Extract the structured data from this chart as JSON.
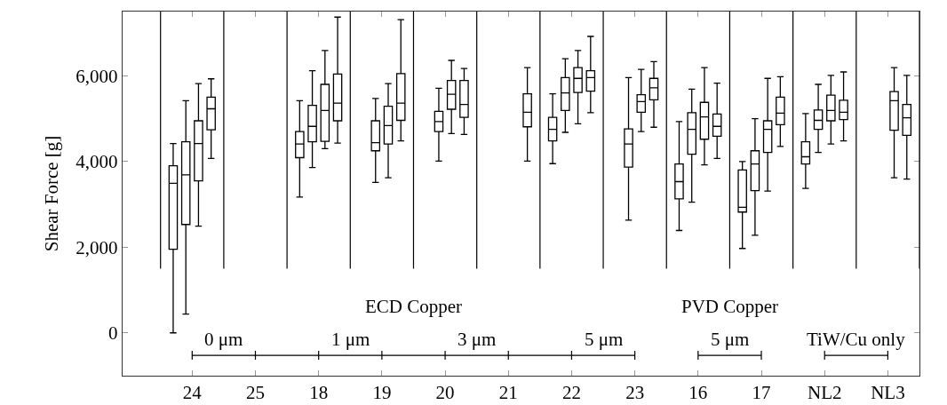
{
  "chart_data": {
    "type": "box",
    "ylabel": "Shear Force [g]",
    "categories": [
      "24",
      "25",
      "18",
      "19",
      "20",
      "21",
      "22",
      "23",
      "16",
      "17",
      "NL2",
      "NL3"
    ],
    "ylim": [
      -1000,
      7500
    ],
    "yticks": [
      0,
      {
        "value": 2000,
        "label": "2,000"
      },
      {
        "value": 4000,
        "label": "4,000"
      },
      {
        "value": 6000,
        "label": "6,000"
      }
    ],
    "grid": false,
    "series": [
      {
        "color": "#000000",
        "boxes": [
          {
            "low": 0,
            "q1": 1950,
            "median": 3490,
            "q3": 3900,
            "high": 4420
          },
          null,
          {
            "low": 3170,
            "q1": 4090,
            "median": 4410,
            "q3": 4700,
            "high": 5420
          },
          null,
          null,
          null,
          {
            "low": 3950,
            "q1": 4480,
            "median": 4750,
            "q3": 5030,
            "high": 5580
          },
          null,
          {
            "low": 2390,
            "q1": 3130,
            "median": 3530,
            "q3": 3940,
            "high": 4930
          },
          {
            "low": 1970,
            "q1": 2820,
            "median": 2930,
            "q3": 3800,
            "high": 4000
          },
          {
            "low": 3370,
            "q1": 3940,
            "median": 4110,
            "q3": 4460,
            "high": 5120
          },
          null
        ]
      },
      {
        "color": "#000000",
        "boxes": [
          {
            "low": 440,
            "q1": 2530,
            "median": 3690,
            "q3": 4460,
            "high": 5420
          },
          null,
          {
            "low": 3860,
            "q1": 4460,
            "median": 4820,
            "q3": 5310,
            "high": 6120
          },
          {
            "low": 3510,
            "q1": 4250,
            "median": 4440,
            "q3": 4950,
            "high": 5470
          },
          {
            "low": 4010,
            "q1": 4700,
            "median": 4930,
            "q3": 5170,
            "high": 5710
          },
          null,
          {
            "low": 4680,
            "q1": 5190,
            "median": 5600,
            "q3": 5960,
            "high": 6400
          },
          {
            "low": 2630,
            "q1": 3870,
            "median": 4410,
            "q3": 4760,
            "high": 5960
          },
          {
            "low": 3050,
            "q1": 4170,
            "median": 4750,
            "q3": 5140,
            "high": 5690
          },
          {
            "low": 2280,
            "q1": 3320,
            "median": 3940,
            "q3": 4250,
            "high": 5000
          },
          {
            "low": 4210,
            "q1": 4750,
            "median": 4960,
            "q3": 5200,
            "high": 5800
          },
          null
        ]
      },
      {
        "color": "#000000",
        "boxes": [
          {
            "low": 2490,
            "q1": 3550,
            "median": 4420,
            "q3": 4950,
            "high": 5820
          },
          null,
          {
            "low": 4300,
            "q1": 4470,
            "median": 5190,
            "q3": 5800,
            "high": 6590
          },
          {
            "low": 3620,
            "q1": 4410,
            "median": 4840,
            "q3": 5290,
            "high": 5820
          },
          {
            "low": 4650,
            "q1": 5220,
            "median": 5570,
            "q3": 5890,
            "high": 6360
          },
          null,
          {
            "low": 4880,
            "q1": 5610,
            "median": 5940,
            "q3": 6190,
            "high": 6590
          },
          {
            "low": 4700,
            "q1": 5150,
            "median": 5400,
            "q3": 5560,
            "high": 6150
          },
          {
            "low": 3920,
            "q1": 4520,
            "median": 5040,
            "q3": 5380,
            "high": 6190
          },
          {
            "low": 3310,
            "q1": 4210,
            "median": 4750,
            "q3": 4950,
            "high": 5940
          },
          {
            "low": 4410,
            "q1": 4950,
            "median": 5190,
            "q3": 5550,
            "high": 6010
          },
          {
            "low": 3620,
            "q1": 4730,
            "median": 5420,
            "q3": 5630,
            "high": 6190
          }
        ]
      },
      {
        "color": "#000000",
        "boxes": [
          {
            "low": 4070,
            "q1": 4740,
            "median": 5230,
            "q3": 5500,
            "high": 5930
          },
          null,
          {
            "low": 4430,
            "q1": 4950,
            "median": 5360,
            "q3": 6040,
            "high": 7370
          },
          {
            "low": 4480,
            "q1": 4960,
            "median": 5360,
            "q3": 6050,
            "high": 7310
          },
          {
            "low": 4630,
            "q1": 5030,
            "median": 5330,
            "q3": 5890,
            "high": 6170
          },
          {
            "low": 4010,
            "q1": 4810,
            "median": 5150,
            "q3": 5580,
            "high": 6190
          },
          {
            "low": 5140,
            "q1": 5640,
            "median": 5960,
            "q3": 6120,
            "high": 6920
          },
          {
            "low": 4800,
            "q1": 5440,
            "median": 5720,
            "q3": 5940,
            "high": 6330
          },
          {
            "low": 4070,
            "q1": 4590,
            "median": 4820,
            "q3": 5110,
            "high": 5830
          },
          {
            "low": 4350,
            "q1": 4860,
            "median": 5130,
            "q3": 5500,
            "high": 5980
          },
          {
            "low": 4480,
            "q1": 4980,
            "median": 5150,
            "q3": 5430,
            "high": 6090
          },
          {
            "low": 3590,
            "q1": 4610,
            "median": 5020,
            "q3": 5330,
            "high": 6010
          }
        ]
      }
    ],
    "annotations": [
      "ECD Copper",
      "PVD Copper",
      "0 μm",
      "1 μm",
      "3 μm",
      "5 μm",
      "5 μm",
      "TiW/Cu only"
    ]
  }
}
